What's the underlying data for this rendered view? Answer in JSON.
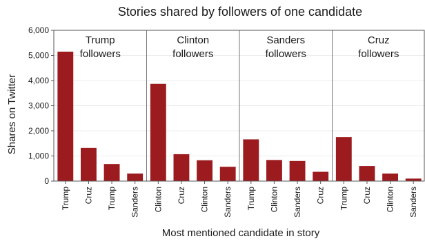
{
  "chart_data": {
    "type": "bar",
    "title": "Stories shared by followers of one candidate",
    "xlabel": "Most mentioned candidate in story",
    "ylabel": "Shares on Twitter",
    "ylim": [
      0,
      6000
    ],
    "yticks": [
      "0",
      "1,000",
      "2,000",
      "3,000",
      "4,000",
      "5,000",
      "6,000"
    ],
    "grid": true,
    "bar_color": "#9b1b1f",
    "panels": [
      {
        "label": [
          "Trump",
          "followers"
        ],
        "categories": [
          "Trump",
          "Cruz",
          "Trump",
          "Sanders"
        ],
        "values": [
          5150,
          1320,
          680,
          300
        ]
      },
      {
        "label": [
          "Clinton",
          "followers"
        ],
        "categories": [
          "Clinton",
          "Cruz",
          "Clinton",
          "Sanders"
        ],
        "values": [
          3870,
          1070,
          830,
          570
        ]
      },
      {
        "label": [
          "Sanders",
          "followers"
        ],
        "categories": [
          "Trump",
          "Clinton",
          "Sanders",
          "Cruz"
        ],
        "values": [
          1660,
          840,
          800,
          370
        ]
      },
      {
        "label": [
          "Cruz",
          "followers"
        ],
        "categories": [
          "Trump",
          "Cruz",
          "Clinton",
          "Sanders"
        ],
        "values": [
          1750,
          600,
          300,
          100
        ]
      }
    ]
  }
}
